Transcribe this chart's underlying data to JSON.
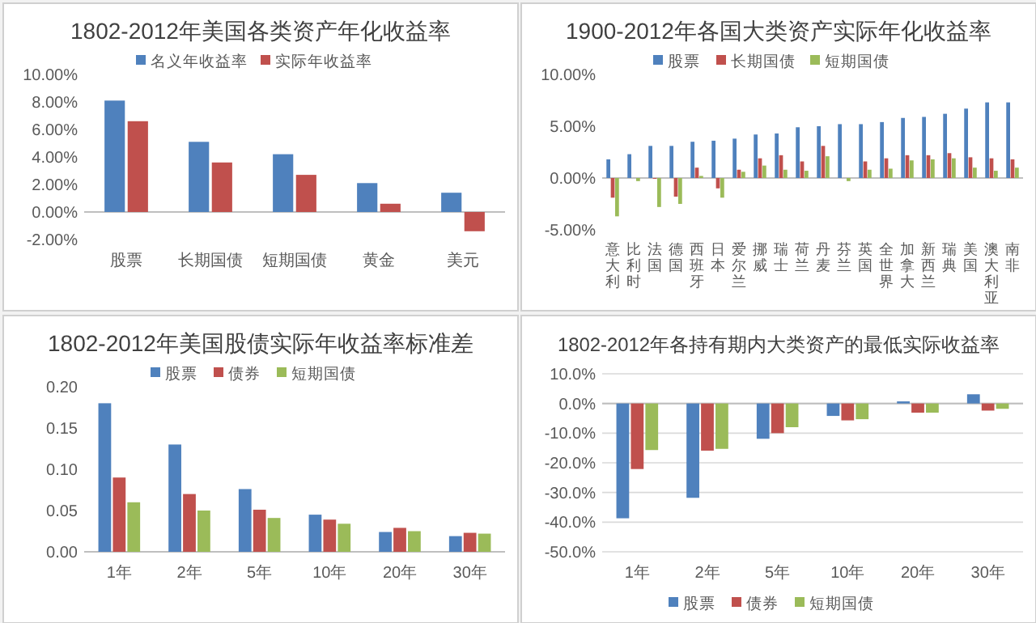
{
  "chart_data": [
    {
      "type": "bar",
      "title": "1802-2012年美国各类资产年化收益率",
      "categories": [
        "股票",
        "长期国债",
        "短期国债",
        "黄金",
        "美元"
      ],
      "series": [
        {
          "name": "名义年收益率",
          "color": "#4f81bd",
          "values": [
            8.1,
            5.1,
            4.2,
            2.1,
            1.4
          ]
        },
        {
          "name": "实际年收益率",
          "color": "#c0504d",
          "values": [
            6.6,
            3.6,
            2.7,
            0.6,
            -1.4
          ]
        }
      ],
      "ylim": [
        -2,
        10
      ],
      "yticks": [
        {
          "value": -2,
          "label": "-2.00%"
        },
        {
          "value": 0,
          "label": "0.00%"
        },
        {
          "value": 2,
          "label": "2.00%"
        },
        {
          "value": 4,
          "label": "4.00%"
        },
        {
          "value": 6,
          "label": "6.00%"
        },
        {
          "value": 8,
          "label": "8.00%"
        },
        {
          "value": 10,
          "label": "10.00%"
        }
      ],
      "legend": "top"
    },
    {
      "type": "bar",
      "title": "1900-2012年各国大类资产实际年化收益率",
      "categories": [
        "意大利",
        "比利时",
        "法国",
        "德国",
        "西班牙",
        "日本",
        "爱尔兰",
        "挪威",
        "瑞士",
        "荷兰",
        "丹麦",
        "芬兰",
        "英国",
        "全世界",
        "加拿大",
        "新西兰",
        "瑞典",
        "美国",
        "澳大利亚",
        "南非"
      ],
      "series": [
        {
          "name": "股票",
          "color": "#4f81bd",
          "values": [
            1.8,
            2.3,
            3.1,
            3.1,
            3.5,
            3.6,
            3.8,
            4.2,
            4.3,
            4.9,
            5.0,
            5.2,
            5.2,
            5.4,
            5.8,
            5.9,
            6.2,
            6.7,
            7.3,
            7.3
          ]
        },
        {
          "name": "长期国债",
          "color": "#c0504d",
          "values": [
            -1.9,
            null,
            0,
            -1.8,
            1.0,
            -1.0,
            0.8,
            1.9,
            2.2,
            1.6,
            3.1,
            null,
            1.6,
            1.9,
            2.2,
            2.2,
            2.4,
            2.0,
            1.9,
            1.8
          ]
        },
        {
          "name": "短期国债",
          "color": "#9bbb59",
          "values": [
            -3.7,
            -0.3,
            -2.8,
            -2.5,
            0.2,
            -1.9,
            0.6,
            1.2,
            0.8,
            0.7,
            2.1,
            -0.3,
            0.8,
            0.9,
            1.7,
            1.8,
            1.9,
            1.0,
            0.7,
            1.0
          ]
        }
      ],
      "ylim": [
        -5,
        10
      ],
      "yticks": [
        {
          "value": -5,
          "label": "-5.00%"
        },
        {
          "value": 0,
          "label": "0.00%"
        },
        {
          "value": 5,
          "label": "5.00%"
        },
        {
          "value": 10,
          "label": "10.00%"
        }
      ],
      "legend": "top"
    },
    {
      "type": "bar",
      "title": "1802-2012年美国股债实际年收益率标准差",
      "categories": [
        "1年",
        "2年",
        "5年",
        "10年",
        "20年",
        "30年"
      ],
      "series": [
        {
          "name": "股票",
          "color": "#4f81bd",
          "values": [
            0.18,
            0.13,
            0.076,
            0.045,
            0.024,
            0.019
          ]
        },
        {
          "name": "债券",
          "color": "#c0504d",
          "values": [
            0.09,
            0.07,
            0.051,
            0.039,
            0.029,
            0.023
          ]
        },
        {
          "name": "短期国债",
          "color": "#9bbb59",
          "values": [
            0.06,
            0.05,
            0.041,
            0.034,
            0.025,
            0.022
          ]
        }
      ],
      "ylim": [
        0,
        0.2
      ],
      "yticks": [
        {
          "value": 0,
          "label": "0.00"
        },
        {
          "value": 0.05,
          "label": "0.05"
        },
        {
          "value": 0.1,
          "label": "0.10"
        },
        {
          "value": 0.15,
          "label": "0.15"
        },
        {
          "value": 0.2,
          "label": "0.20"
        }
      ],
      "legend": "top"
    },
    {
      "type": "bar",
      "title": "1802-2012年各持有期内大类资产的最低实际收益率",
      "categories": [
        "1年",
        "2年",
        "5年",
        "10年",
        "20年",
        "30年"
      ],
      "series": [
        {
          "name": "股票",
          "color": "#4f81bd",
          "values": [
            -38.7,
            -31.8,
            -11.9,
            -4.2,
            0.7,
            3.1
          ]
        },
        {
          "name": "债券",
          "color": "#c0504d",
          "values": [
            -22.1,
            -15.9,
            -10.0,
            -5.7,
            -3.1,
            -2.4
          ]
        },
        {
          "name": "短期国债",
          "color": "#9bbb59",
          "values": [
            -15.7,
            -15.3,
            -8.0,
            -5.3,
            -3.1,
            -1.8
          ]
        }
      ],
      "ylim": [
        -50,
        10
      ],
      "yticks": [
        {
          "value": -50,
          "label": "-50.0%"
        },
        {
          "value": -40,
          "label": "-40.0%"
        },
        {
          "value": -30,
          "label": "-30.0%"
        },
        {
          "value": -20,
          "label": "-20.0%"
        },
        {
          "value": -10,
          "label": "-10.0%"
        },
        {
          "value": 0,
          "label": "0.0%"
        },
        {
          "value": 10,
          "label": "10.0%"
        }
      ],
      "legend": "bottom",
      "grid": true
    }
  ]
}
